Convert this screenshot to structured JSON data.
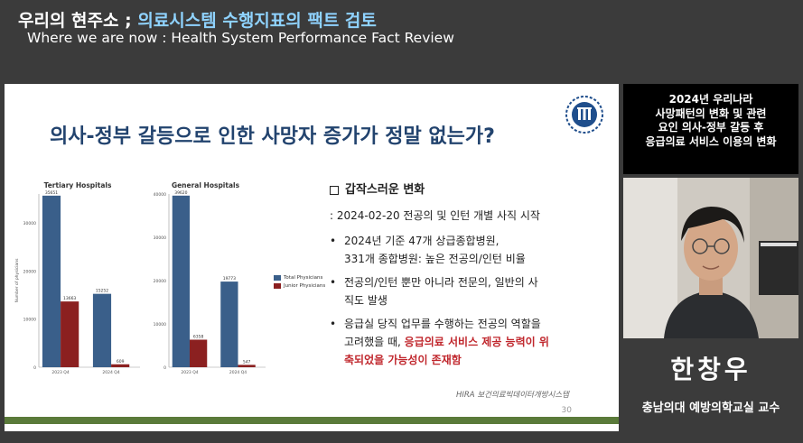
{
  "header": {
    "title_prefix": "우리의 현주소 ; ",
    "title_accent": "의료시스템 수행지표의 팩트 검토",
    "subtitle": "Where we are now : Health System Performance Fact Review"
  },
  "slide": {
    "title": "의사-정부 갈등으로 인한 사망자 증가가 정말 없는가?",
    "page_number": "30",
    "source": "HIRA 보건의료빅데이터개방시스템",
    "bullets": {
      "heading": "갑작스러운 변화",
      "date_line": ": 2024-02-20 전공의 및 인턴 개별 사직 시작",
      "item1_line1": "2024년 기준 47개 상급종합병원,",
      "item1_line2": "331개 종합병원: 높은 전공의/인턴 비율",
      "item2_line1": "전공의/인턴 뿐만 아니라 전문의, 일반의 사",
      "item2_line2": "직도 발생",
      "item3_line1": "응급실 당직 업무를 수행하는 전공의 역할을",
      "item3_line2a": "고려했을 때, ",
      "item3_line2b": "응급의료 서비스 제공 능력이 위",
      "item3_line3": "축되었을 가능성이 존재함",
      "bullet_symbol": "•"
    }
  },
  "chart_data": [
    {
      "type": "bar",
      "title": "Tertiary Hospitals",
      "categories": [
        "2023 Q4",
        "2024 Q4"
      ],
      "ylabel": "Number of physicians",
      "yticks": [
        "0",
        "10000",
        "20000",
        "30000"
      ],
      "ylim": [
        0,
        36000
      ],
      "series": [
        {
          "name": "Total Physicians",
          "values": [
            35651,
            15252
          ],
          "labels": [
            "35651",
            "15252"
          ]
        },
        {
          "name": "Junior Physicians",
          "values": [
            13663,
            609
          ],
          "labels": [
            "13663",
            "609"
          ]
        }
      ]
    },
    {
      "type": "bar",
      "title": "General Hospitals",
      "categories": [
        "2023 Q4",
        "2024 Q4"
      ],
      "ylabel": "",
      "yticks": [
        "0",
        "10000",
        "20000",
        "30000",
        "40000"
      ],
      "ylim": [
        0,
        40000
      ],
      "series": [
        {
          "name": "Total Physicians",
          "values": [
            39620,
            19773
          ],
          "labels": [
            "39620",
            "19773"
          ]
        },
        {
          "name": "Junior Physicians",
          "values": [
            6358,
            547
          ],
          "labels": [
            "6358",
            "547"
          ]
        }
      ]
    }
  ],
  "legend": {
    "items": [
      {
        "label": "Total Physicians",
        "color": "#3a5f8a"
      },
      {
        "label": "Junior Physicians",
        "color": "#8b2020"
      }
    ]
  },
  "info_panel": {
    "line1": "2024년 우리나라",
    "line2": "사망패턴의 변화 및 관련",
    "line3": "요인 의사-정부 갈등 후",
    "line4": "응급의료 서비스 이용의 변화"
  },
  "speaker": {
    "name": "한창우",
    "affiliation": "충남의대 예방의학교실 교수"
  },
  "colors": {
    "total": "#3a5f8a",
    "junior": "#8b2020",
    "title_blue": "#22436e",
    "accent_red": "#c0272d"
  }
}
